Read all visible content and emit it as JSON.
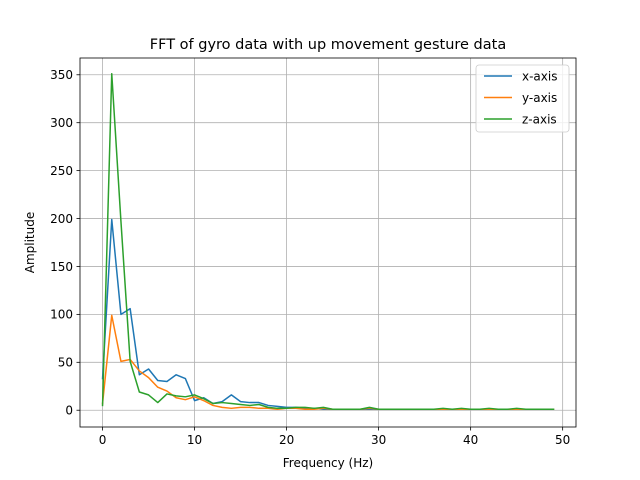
{
  "chart_data": {
    "type": "line",
    "title": "FFT of gyro data with up movement gesture data",
    "xlabel": "Frequency (Hz)",
    "ylabel": "Amplitude",
    "xlim": [
      -2.45,
      51.45
    ],
    "ylim": [
      -17.5,
      367.5
    ],
    "xticks": [
      0,
      10,
      20,
      30,
      40,
      50
    ],
    "yticks": [
      0,
      50,
      100,
      150,
      200,
      250,
      300,
      350
    ],
    "grid": true,
    "legend_position": "top-right",
    "x": [
      0,
      1,
      2,
      3,
      4,
      5,
      6,
      7,
      8,
      9,
      10,
      11,
      12,
      13,
      14,
      15,
      16,
      17,
      18,
      19,
      20,
      21,
      22,
      23,
      24,
      25,
      26,
      27,
      28,
      29,
      30,
      31,
      32,
      33,
      34,
      35,
      36,
      37,
      38,
      39,
      40,
      41,
      42,
      43,
      44,
      45,
      46,
      47,
      48,
      49
    ],
    "series": [
      {
        "name": "x-axis",
        "color": "#1f77b4",
        "values": [
          33,
          199,
          100,
          106,
          37,
          43,
          31,
          30,
          37,
          33,
          10,
          13,
          7,
          9,
          16,
          9,
          8,
          8,
          5,
          4,
          3,
          3,
          2,
          2,
          1,
          1,
          1,
          1,
          1,
          1,
          1,
          1,
          1,
          1,
          1,
          1,
          1,
          1,
          1,
          1,
          1,
          1,
          1,
          1,
          1,
          1,
          1,
          1,
          1,
          1
        ]
      },
      {
        "name": "y-axis",
        "color": "#ff7f0e",
        "values": [
          7,
          99,
          51,
          53,
          41,
          34,
          24,
          20,
          13,
          11,
          14,
          10,
          5,
          3,
          2,
          3,
          3,
          2,
          2,
          1,
          2,
          2,
          1,
          1,
          2,
          1,
          1,
          1,
          1,
          2,
          1,
          1,
          1,
          1,
          1,
          1,
          1,
          1,
          1,
          1,
          1,
          1,
          1,
          1,
          1,
          1,
          1,
          1,
          1,
          1
        ]
      },
      {
        "name": "z-axis",
        "color": "#2ca02c",
        "values": [
          5,
          351,
          197,
          51,
          19,
          16,
          8,
          17,
          15,
          14,
          16,
          12,
          7,
          8,
          7,
          6,
          5,
          6,
          3,
          2,
          2,
          3,
          3,
          2,
          3,
          1,
          1,
          1,
          1,
          3,
          1,
          1,
          1,
          1,
          1,
          1,
          1,
          2,
          1,
          2,
          1,
          1,
          2,
          1,
          1,
          2,
          1,
          1,
          1,
          1
        ]
      }
    ]
  }
}
